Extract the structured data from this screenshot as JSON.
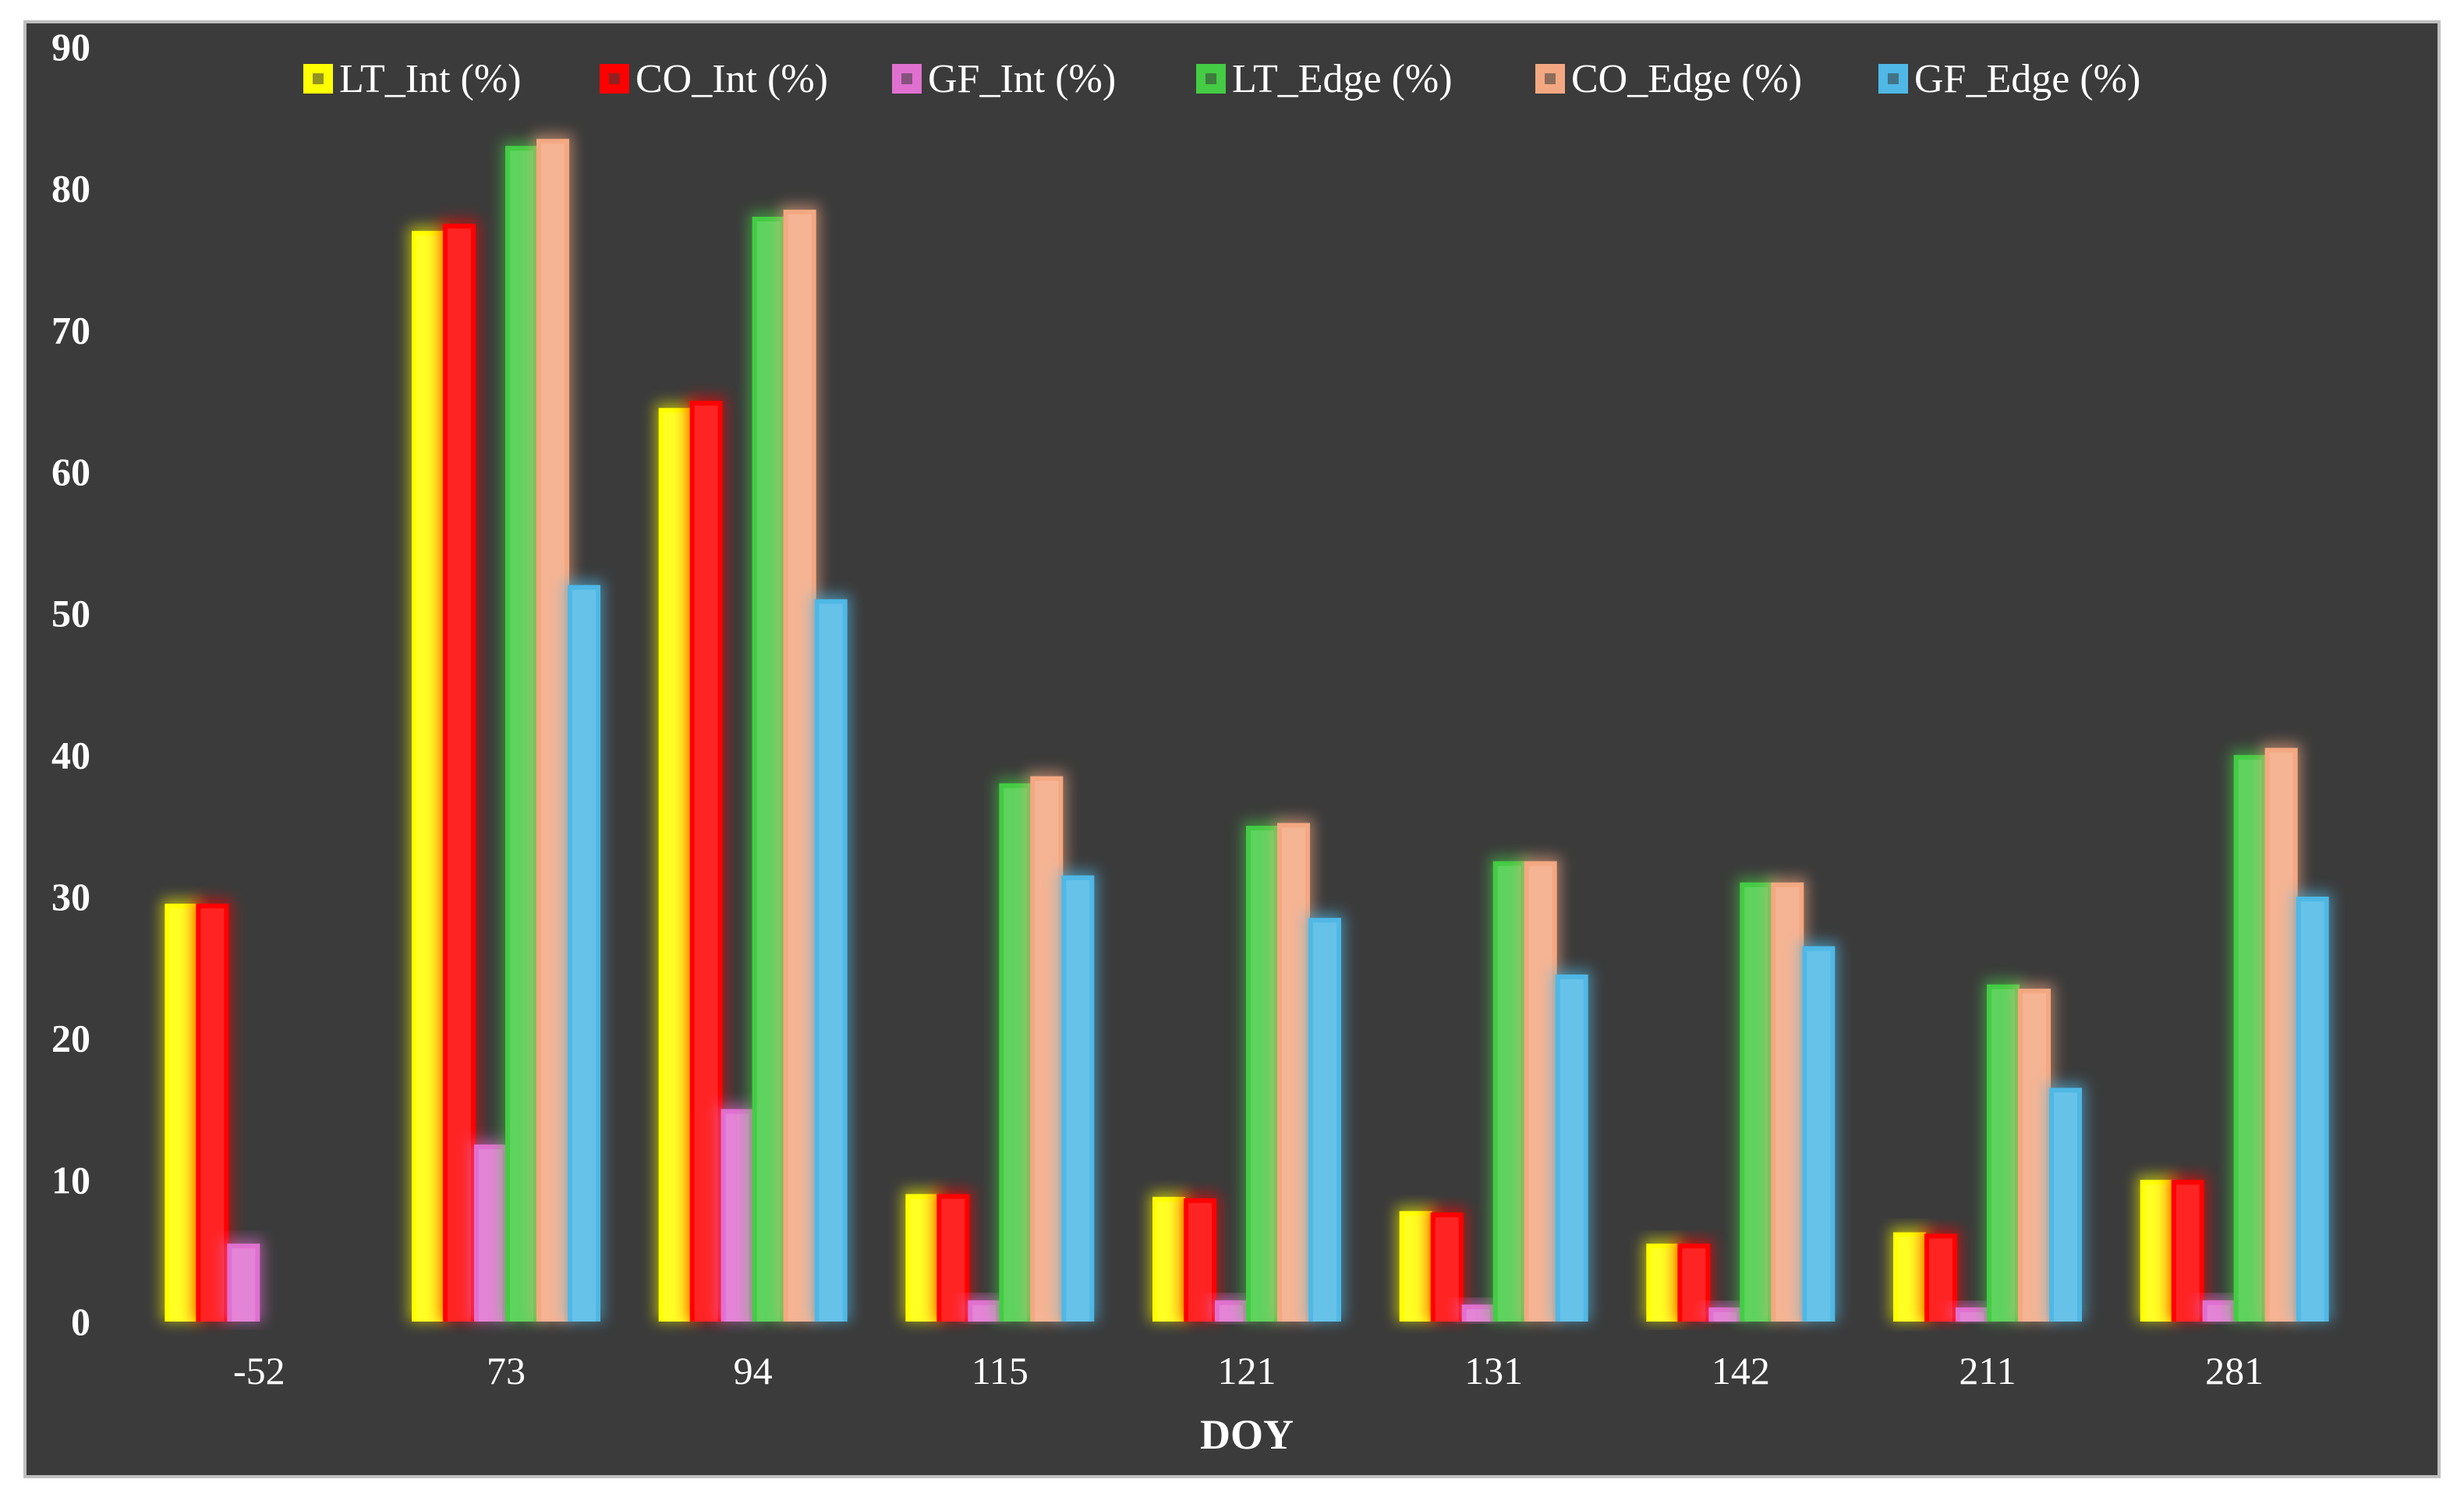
{
  "chart_data": {
    "type": "bar",
    "title": "",
    "xlabel": "DOY",
    "ylabel": "",
    "ylim": [
      0,
      90
    ],
    "yticks": [
      0,
      10,
      20,
      30,
      40,
      50,
      60,
      70,
      80,
      90
    ],
    "grid": false,
    "legend_position": "top",
    "categories": [
      "-52",
      "73",
      "94",
      "115",
      "121",
      "131",
      "142",
      "211",
      "281"
    ],
    "series": [
      {
        "name": "LT_Int (%)",
        "color": "#ffff00",
        "values": [
          29.5,
          77,
          64.5,
          9,
          8.8,
          7.8,
          5.5,
          6.3,
          10
        ]
      },
      {
        "name": "CO_Int (%)",
        "color": "#ff0000",
        "values": [
          29.5,
          77.5,
          65,
          9,
          8.7,
          7.7,
          5.5,
          6.2,
          10
        ]
      },
      {
        "name": "GF_Int (%)",
        "color": "#e070d0",
        "values": [
          5.5,
          12.5,
          15,
          1.5,
          1.5,
          1.2,
          1,
          1,
          1.5
        ]
      },
      {
        "name": "LT_Edge (%)",
        "color": "#44cc44",
        "values": [
          null,
          83,
          78,
          38,
          35,
          32.5,
          31,
          23.8,
          40
        ]
      },
      {
        "name": "CO_Edge (%)",
        "color": "#f4a882",
        "values": [
          null,
          83.5,
          78.5,
          38.5,
          35.2,
          32.5,
          31,
          23.5,
          40.5
        ]
      },
      {
        "name": "GF_Edge (%)",
        "color": "#4fb8e6",
        "values": [
          null,
          52,
          51,
          31.5,
          28.5,
          24.5,
          26.5,
          16.5,
          30
        ]
      }
    ]
  }
}
